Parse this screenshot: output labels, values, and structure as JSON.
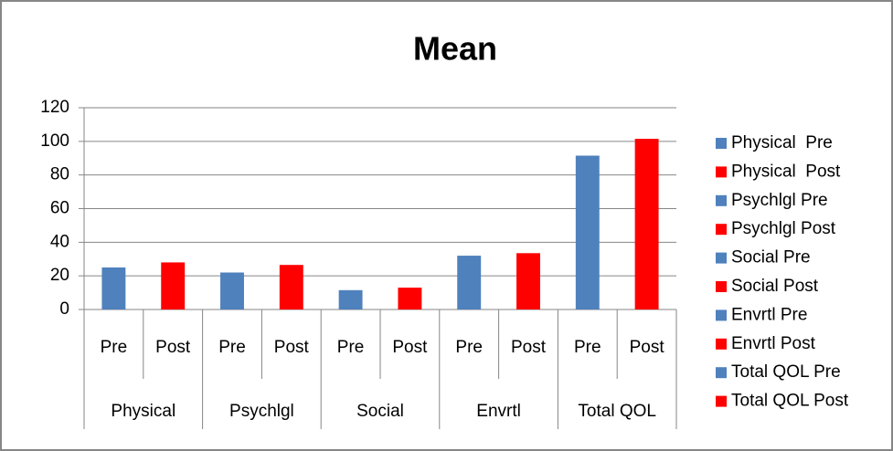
{
  "chart_data": {
    "type": "bar",
    "title": "Mean",
    "categories": [
      "Pre",
      "Post",
      "Pre",
      "Post",
      "Pre",
      "Post",
      "Pre",
      "Post",
      "Pre",
      "Post"
    ],
    "groups": [
      "Physical",
      "Psychlgl",
      "Social",
      "Envrtl",
      "Total QOL"
    ],
    "series": [
      {
        "name": "Physical  Pre",
        "color": "#4f81bd",
        "values": [
          25,
          null,
          null,
          null,
          null,
          null,
          null,
          null,
          null,
          null
        ]
      },
      {
        "name": "Physical  Post",
        "color": "#ff0000",
        "values": [
          null,
          28,
          null,
          null,
          null,
          null,
          null,
          null,
          null,
          null
        ]
      },
      {
        "name": "Psychlgl Pre",
        "color": "#4f81bd",
        "values": [
          null,
          null,
          22,
          null,
          null,
          null,
          null,
          null,
          null,
          null
        ]
      },
      {
        "name": "Psychlgl Post",
        "color": "#ff0000",
        "values": [
          null,
          null,
          null,
          26.5,
          null,
          null,
          null,
          null,
          null,
          null
        ]
      },
      {
        "name": "Social Pre",
        "color": "#4f81bd",
        "values": [
          null,
          null,
          null,
          null,
          11.5,
          null,
          null,
          null,
          null,
          null
        ]
      },
      {
        "name": "Social Post",
        "color": "#ff0000",
        "values": [
          null,
          null,
          null,
          null,
          null,
          13,
          null,
          null,
          null,
          null
        ]
      },
      {
        "name": "Envrtl Pre",
        "color": "#4f81bd",
        "values": [
          null,
          null,
          null,
          null,
          null,
          null,
          32,
          null,
          null,
          null
        ]
      },
      {
        "name": "Envrtl Post",
        "color": "#ff0000",
        "values": [
          null,
          null,
          null,
          null,
          null,
          null,
          null,
          33.5,
          null,
          null
        ]
      },
      {
        "name": "Total QOL Pre",
        "color": "#4f81bd",
        "values": [
          null,
          null,
          null,
          null,
          null,
          null,
          null,
          null,
          91.5,
          null
        ]
      },
      {
        "name": "Total QOL Post",
        "color": "#ff0000",
        "values": [
          null,
          null,
          null,
          null,
          null,
          null,
          null,
          null,
          null,
          101.5
        ]
      }
    ],
    "ylim": [
      0,
      120
    ],
    "yticks": [
      0,
      20,
      40,
      60,
      80,
      100,
      120
    ],
    "grid": true,
    "legend": "right"
  }
}
